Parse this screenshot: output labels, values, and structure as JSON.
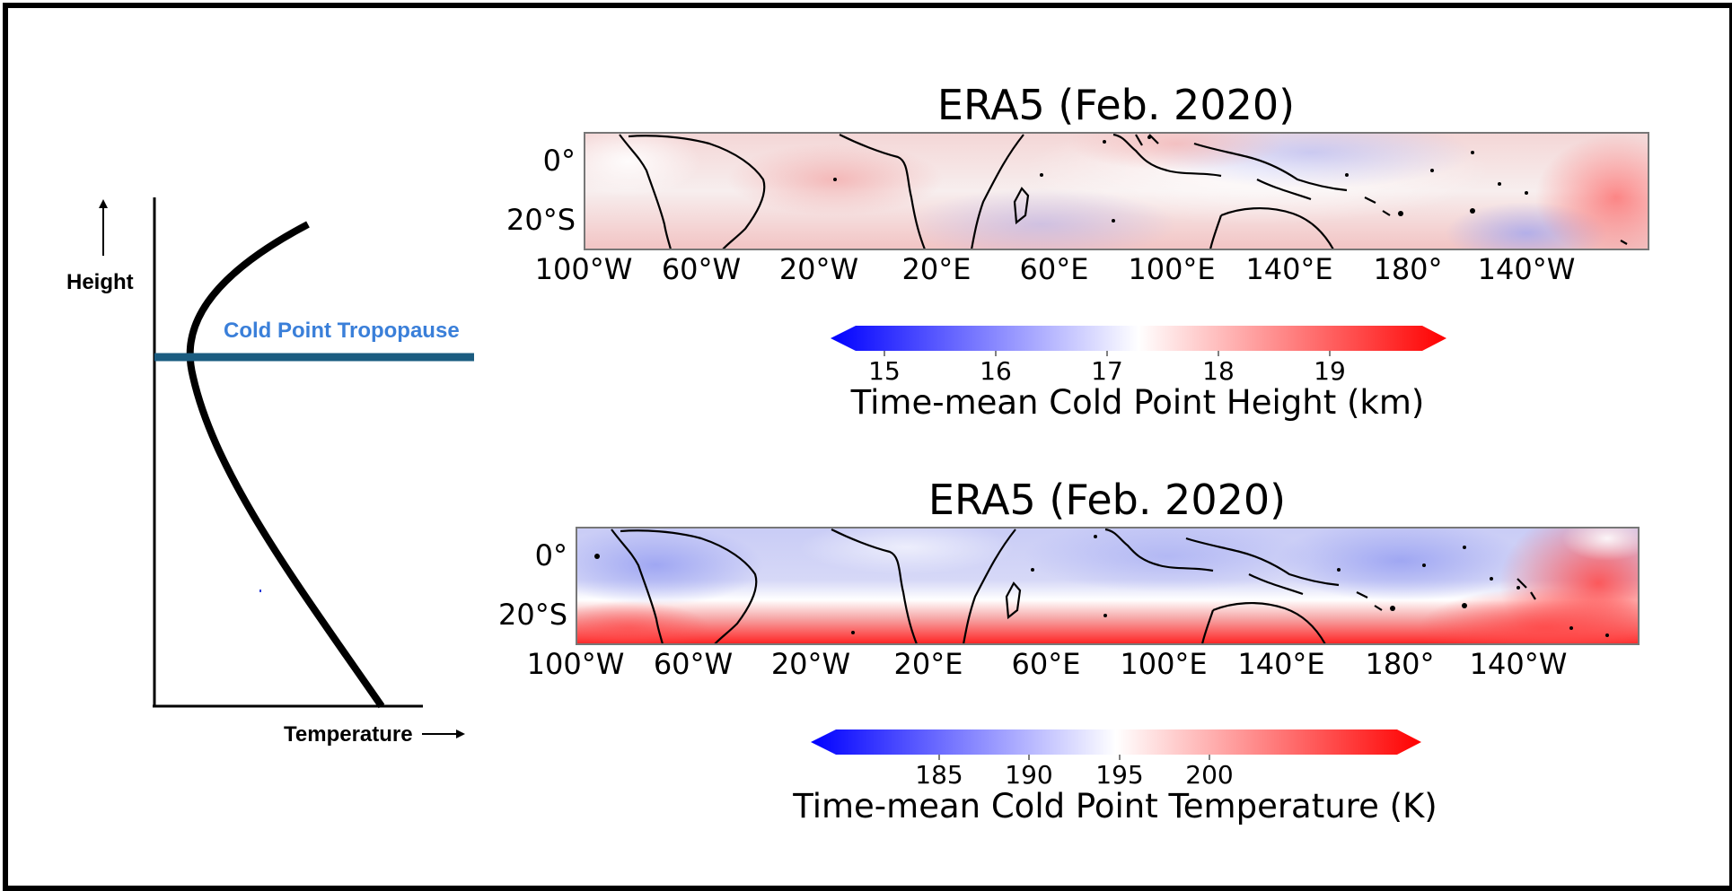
{
  "schematic": {
    "y_axis_label": "Height",
    "x_axis_label": "Temperature",
    "tropopause_label": "Cold Point Tropopause",
    "tropopause_color": "#1b5c80",
    "tropopause_label_color": "#3a7fd9"
  },
  "maps": [
    {
      "title": "ERA5 (Feb. 2020)",
      "lat_ticks": [
        "0°",
        "20°S"
      ],
      "lon_ticks": [
        "100°W",
        "60°W",
        "20°W",
        "20°E",
        "60°E",
        "100°E",
        "140°E",
        "180°",
        "140°W"
      ],
      "colorbar": {
        "ticks": [
          "15",
          "16",
          "17",
          "18",
          "19"
        ],
        "label": "Time-mean Cold Point Height (km)",
        "colors": [
          "#0000ff",
          "#ffffff",
          "#ff0000"
        ]
      }
    },
    {
      "title": "ERA5 (Feb. 2020)",
      "lat_ticks": [
        "0°",
        "20°S"
      ],
      "lon_ticks": [
        "100°W",
        "60°W",
        "20°W",
        "20°E",
        "60°E",
        "100°E",
        "140°E",
        "180°",
        "140°W"
      ],
      "colorbar": {
        "ticks": [
          "185",
          "190",
          "195",
          "200"
        ],
        "label": "Time-mean Cold Point Temperature (K)",
        "colors": [
          "#0000ff",
          "#ffffff",
          "#ff0000"
        ]
      }
    }
  ]
}
